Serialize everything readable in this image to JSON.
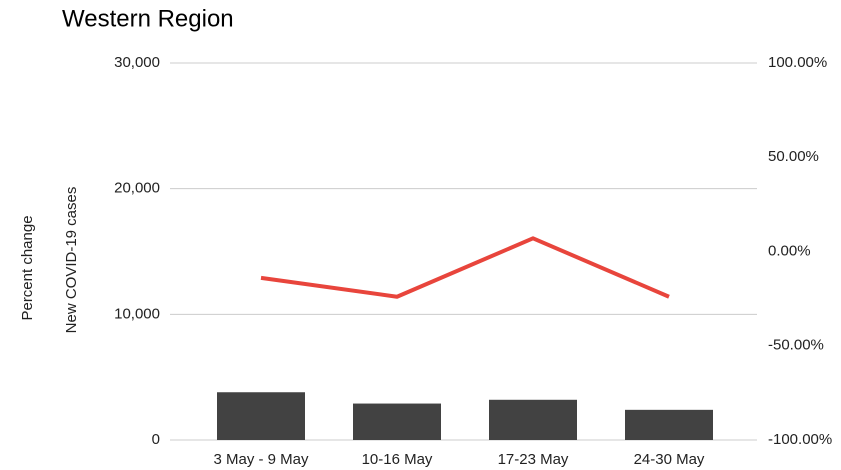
{
  "chart_data": {
    "type": "bar",
    "title": "Western Region",
    "categories": [
      "3 May - 9 May",
      "10-16 May",
      "17-23 May",
      "24-30 May"
    ],
    "series": [
      {
        "name": "New COVID-19 cases",
        "type": "bar",
        "color": "#424242",
        "values": [
          3800,
          2900,
          3200,
          2400
        ]
      },
      {
        "name": "Percent change",
        "type": "line",
        "axis": "y2",
        "color": "#e8453c",
        "values": [
          -14,
          -24,
          7,
          -24
        ]
      }
    ],
    "ylabel": "New COVID-19 cases",
    "y2label": "Percent change",
    "ylim": [
      0,
      30000
    ],
    "yticks": [
      0,
      {
        "value": 10000,
        "label": "10,000"
      },
      {
        "value": 20000,
        "label": "20,000"
      },
      {
        "value": 30000,
        "label": "30,000"
      }
    ],
    "y2lim": [
      -100,
      100
    ],
    "y2ticks": [
      {
        "value": -100,
        "label": "-100.00%"
      },
      {
        "value": -50,
        "label": "-50.00%"
      },
      {
        "value": 0,
        "label": "0.00%"
      },
      {
        "value": 50,
        "label": "50.00%"
      },
      {
        "value": 100,
        "label": "100.00%"
      }
    ],
    "grid": true
  }
}
